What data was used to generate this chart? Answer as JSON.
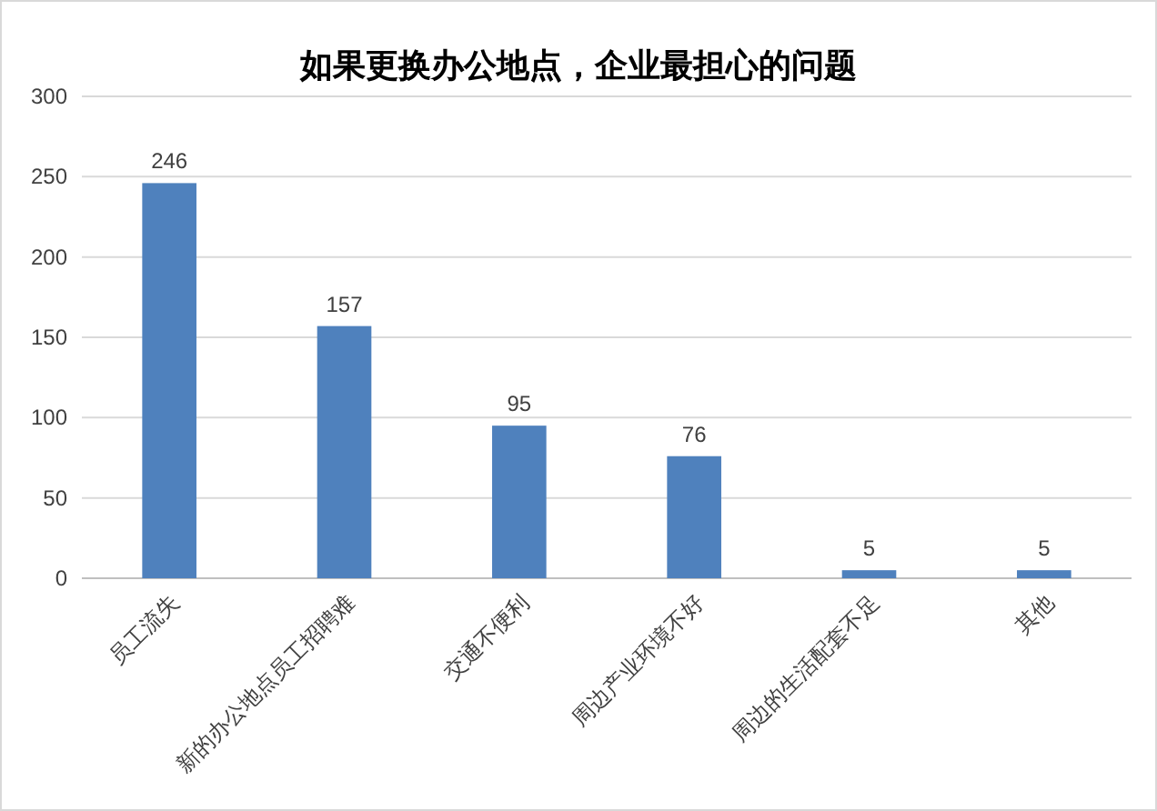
{
  "chart_data": {
    "type": "bar",
    "title": "如果更换办公地点，企业最担心的问题",
    "categories": [
      "员工流失",
      "新的办公地点员工招聘难",
      "交通不便利",
      "周边产业环境不好",
      "周边的生活配套不足",
      "其他"
    ],
    "values": [
      246,
      157,
      95,
      76,
      5,
      5
    ],
    "color": "#4f81bd",
    "ylim": [
      0,
      300
    ],
    "yticks": [
      0,
      50,
      100,
      150,
      200,
      250,
      300
    ],
    "grid": "y",
    "data_labels": true
  }
}
